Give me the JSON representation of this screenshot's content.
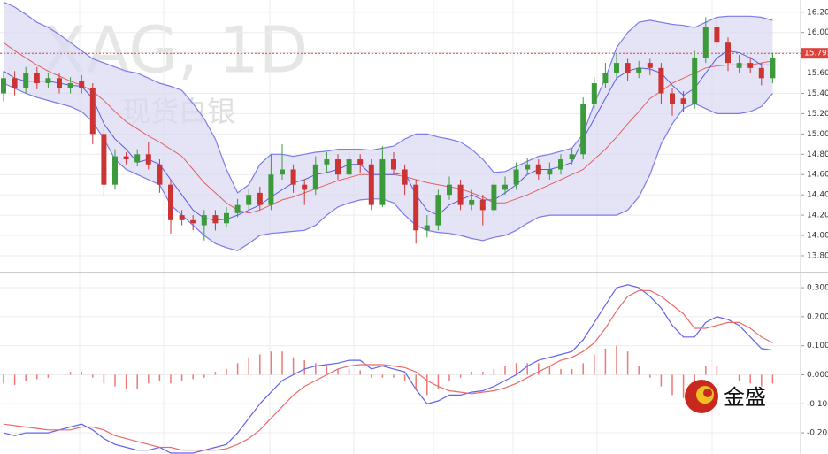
{
  "chart_data": [
    {
      "type": "candlestick",
      "title": "XAG, 1D",
      "subtitle": "现货白银",
      "open": [
        15.4,
        15.55,
        15.45,
        15.6,
        15.5,
        15.55,
        15.45,
        15.52,
        15.45,
        15.0,
        14.5,
        14.78,
        14.72,
        14.8,
        14.7,
        14.5,
        14.2,
        14.15,
        14.1,
        14.2,
        14.12,
        14.22,
        14.3,
        14.42,
        14.3,
        14.6,
        14.65,
        14.5,
        14.45,
        14.7,
        14.75,
        14.6,
        14.75,
        14.7,
        14.3,
        14.75,
        14.65,
        14.5,
        14.05,
        14.1,
        14.4,
        14.5,
        14.3,
        14.35,
        14.25,
        14.45,
        14.5,
        14.65,
        14.7,
        14.6,
        14.65,
        14.75,
        14.8,
        15.3,
        15.5,
        15.6,
        15.7,
        15.6,
        15.7,
        15.65,
        15.4,
        15.35,
        15.3,
        15.75,
        16.05,
        15.9,
        15.65,
        15.7,
        15.65,
        15.55
      ],
      "high": [
        15.62,
        15.62,
        15.66,
        15.66,
        15.6,
        15.6,
        15.56,
        15.58,
        15.5,
        15.05,
        14.85,
        14.82,
        14.85,
        14.92,
        14.75,
        14.55,
        14.25,
        14.2,
        14.25,
        14.25,
        14.28,
        14.36,
        14.46,
        14.48,
        14.8,
        14.9,
        14.7,
        14.55,
        14.78,
        14.82,
        14.8,
        14.82,
        14.8,
        14.75,
        14.88,
        14.82,
        14.7,
        14.55,
        14.2,
        14.45,
        14.58,
        14.55,
        14.45,
        14.4,
        14.56,
        14.58,
        14.72,
        14.76,
        14.75,
        14.72,
        14.8,
        14.86,
        15.36,
        15.56,
        15.7,
        15.8,
        15.74,
        15.72,
        15.74,
        15.7,
        15.45,
        15.42,
        15.82,
        16.15,
        16.12,
        15.95,
        15.78,
        15.76,
        15.7,
        15.8
      ],
      "low": [
        15.32,
        15.38,
        15.4,
        15.44,
        15.45,
        15.4,
        15.4,
        15.4,
        14.9,
        14.38,
        14.45,
        14.7,
        14.68,
        14.65,
        14.42,
        14.02,
        14.1,
        14.05,
        13.95,
        14.05,
        14.08,
        14.18,
        14.25,
        14.25,
        14.25,
        14.55,
        14.42,
        14.3,
        14.4,
        14.62,
        14.55,
        14.55,
        14.62,
        14.25,
        14.28,
        14.6,
        14.4,
        13.92,
        13.98,
        14.05,
        14.35,
        14.25,
        14.25,
        14.1,
        14.2,
        14.4,
        14.45,
        14.6,
        14.55,
        14.55,
        14.6,
        14.7,
        14.75,
        15.25,
        15.45,
        15.55,
        15.52,
        15.55,
        15.58,
        15.3,
        15.18,
        15.22,
        15.25,
        15.7,
        15.85,
        15.62,
        15.6,
        15.6,
        15.48,
        15.5
      ],
      "close": [
        15.55,
        15.45,
        15.6,
        15.5,
        15.55,
        15.45,
        15.5,
        15.45,
        15.0,
        14.5,
        14.78,
        14.75,
        14.8,
        14.7,
        14.5,
        14.15,
        14.15,
        14.12,
        14.2,
        14.12,
        14.22,
        14.3,
        14.4,
        14.3,
        14.6,
        14.65,
        14.5,
        14.45,
        14.7,
        14.75,
        14.6,
        14.75,
        14.7,
        14.3,
        14.75,
        14.65,
        14.5,
        14.05,
        14.1,
        14.4,
        14.5,
        14.3,
        14.35,
        14.25,
        14.5,
        14.5,
        14.65,
        14.7,
        14.6,
        14.65,
        14.75,
        14.8,
        15.3,
        15.5,
        15.6,
        15.7,
        15.6,
        15.65,
        15.65,
        15.4,
        15.3,
        15.3,
        15.75,
        16.05,
        15.9,
        15.7,
        15.7,
        15.65,
        15.55,
        15.75
      ],
      "up_color": "#3c9a3c",
      "down_color": "#cc3333",
      "bands": {
        "color": "#7b7bea",
        "fill": "#d8d8f2",
        "upper": [
          16.3,
          16.25,
          16.18,
          16.1,
          16.05,
          15.98,
          15.9,
          15.82,
          15.74,
          15.7,
          15.66,
          15.62,
          15.6,
          15.55,
          15.5,
          15.47,
          15.43,
          15.3,
          15.15,
          14.95,
          14.65,
          14.42,
          14.5,
          14.7,
          14.8,
          14.8,
          14.78,
          14.8,
          14.82,
          14.83,
          14.85,
          14.85,
          14.85,
          14.84,
          14.86,
          14.88,
          14.95,
          15.0,
          15.0,
          14.97,
          14.95,
          14.92,
          14.85,
          14.75,
          14.62,
          14.63,
          14.68,
          14.73,
          14.78,
          14.8,
          14.83,
          14.86,
          15.0,
          15.3,
          15.55,
          15.85,
          16.0,
          16.1,
          16.12,
          16.1,
          16.08,
          16.07,
          16.05,
          16.1,
          16.15,
          16.16,
          16.16,
          16.16,
          16.15,
          16.12
        ],
        "lower": [
          15.5,
          15.45,
          15.4,
          15.36,
          15.33,
          15.3,
          15.27,
          15.22,
          15.12,
          14.95,
          14.75,
          14.65,
          14.6,
          14.55,
          14.5,
          14.3,
          14.2,
          14.1,
          14.0,
          13.92,
          13.88,
          13.85,
          13.92,
          14.0,
          14.02,
          14.03,
          14.04,
          14.05,
          14.1,
          14.2,
          14.28,
          14.32,
          14.35,
          14.36,
          14.36,
          14.32,
          14.2,
          14.1,
          14.05,
          14.03,
          14.02,
          14.0,
          13.97,
          13.95,
          13.98,
          14.0,
          14.05,
          14.12,
          14.18,
          14.2,
          14.2,
          14.2,
          14.2,
          14.2,
          14.2,
          14.2,
          14.25,
          14.38,
          14.6,
          14.9,
          15.1,
          15.25,
          15.3,
          15.25,
          15.2,
          15.2,
          15.2,
          15.22,
          15.27,
          15.4
        ]
      },
      "lines": [
        {
          "color": "#e06060",
          "values": [
            15.9,
            15.82,
            15.75,
            15.68,
            15.62,
            15.57,
            15.52,
            15.48,
            15.42,
            15.33,
            15.22,
            15.12,
            15.05,
            14.98,
            14.92,
            14.85,
            14.78,
            14.65,
            14.52,
            14.42,
            14.32,
            14.25,
            14.22,
            14.25,
            14.3,
            14.35,
            14.38,
            14.42,
            14.46,
            14.5,
            14.54,
            14.57,
            14.6,
            14.6,
            14.6,
            14.6,
            14.58,
            14.55,
            14.52,
            14.5,
            14.48,
            14.46,
            14.42,
            14.38,
            14.32,
            14.32,
            14.36,
            14.4,
            14.45,
            14.5,
            14.55,
            14.6,
            14.65,
            14.75,
            14.85,
            14.97,
            15.1,
            15.22,
            15.35,
            15.42,
            15.5,
            15.55,
            15.6,
            15.65,
            15.67,
            15.68,
            15.68,
            15.68,
            15.7,
            15.72
          ]
        },
        {
          "color": "#5a5ae6",
          "values": [
            15.62,
            15.55,
            15.52,
            15.52,
            15.52,
            15.5,
            15.48,
            15.47,
            15.35,
            15.1,
            14.95,
            14.85,
            14.72,
            14.75,
            14.7,
            14.55,
            14.4,
            14.25,
            14.17,
            14.15,
            14.16,
            14.2,
            14.25,
            14.3,
            14.38,
            14.45,
            14.52,
            14.55,
            14.6,
            14.62,
            14.65,
            14.7,
            14.7,
            14.6,
            14.6,
            14.6,
            14.62,
            14.4,
            14.25,
            14.2,
            14.3,
            14.35,
            14.4,
            14.35,
            14.35,
            14.42,
            14.5,
            14.6,
            14.65,
            14.65,
            14.68,
            14.72,
            14.95,
            15.15,
            15.35,
            15.55,
            15.62,
            15.65,
            15.64,
            15.6,
            15.48,
            15.38,
            15.45,
            15.6,
            15.75,
            15.82,
            15.8,
            15.75,
            15.68,
            15.68
          ]
        }
      ],
      "last_price": {
        "value": 15.795,
        "label": "15.795"
      },
      "last_color": "#e0403a",
      "ylim": [
        13.634,
        16.32
      ],
      "yticks": [
        {
          "value": 13.8,
          "label": "13.80"
        },
        {
          "value": 14.0,
          "label": "14.00"
        },
        {
          "value": 14.2,
          "label": "14.20"
        },
        {
          "value": 14.4,
          "label": "14.40"
        },
        {
          "value": 14.6,
          "label": "14.60"
        },
        {
          "value": 14.8,
          "label": "14.80"
        },
        {
          "value": 15.0,
          "label": "15.00"
        },
        {
          "value": 15.2,
          "label": "15.20"
        },
        {
          "value": 15.4,
          "label": "15.40"
        },
        {
          "value": 15.6,
          "label": "15.60"
        },
        {
          "value": 15.8,
          "label": "15.80"
        },
        {
          "value": 16.0,
          "label": "16.00"
        },
        {
          "value": 16.2,
          "label": "16.20"
        }
      ],
      "grid": true
    },
    {
      "type": "macd",
      "series": [
        {
          "color": "#6262ea",
          "values": [
            -0.2,
            -0.21,
            -0.2,
            -0.2,
            -0.2,
            -0.19,
            -0.18,
            -0.17,
            -0.19,
            -0.22,
            -0.24,
            -0.25,
            -0.26,
            -0.26,
            -0.25,
            -0.27,
            -0.27,
            -0.27,
            -0.26,
            -0.25,
            -0.24,
            -0.2,
            -0.15,
            -0.1,
            -0.06,
            -0.02,
            0.0,
            0.02,
            0.03,
            0.035,
            0.04,
            0.05,
            0.05,
            0.02,
            0.03,
            0.02,
            0.01,
            -0.05,
            -0.1,
            -0.09,
            -0.07,
            -0.07,
            -0.06,
            -0.055,
            -0.04,
            -0.02,
            0.0,
            0.03,
            0.05,
            0.06,
            0.07,
            0.08,
            0.12,
            0.18,
            0.24,
            0.3,
            0.31,
            0.3,
            0.27,
            0.23,
            0.17,
            0.13,
            0.13,
            0.18,
            0.2,
            0.19,
            0.17,
            0.13,
            0.09,
            0.085
          ]
        },
        {
          "color": "#ea6a6a",
          "values": [
            -0.17,
            -0.175,
            -0.18,
            -0.185,
            -0.19,
            -0.19,
            -0.19,
            -0.18,
            -0.18,
            -0.19,
            -0.21,
            -0.22,
            -0.23,
            -0.24,
            -0.25,
            -0.25,
            -0.26,
            -0.26,
            -0.26,
            -0.26,
            -0.255,
            -0.24,
            -0.22,
            -0.19,
            -0.15,
            -0.11,
            -0.07,
            -0.04,
            -0.02,
            0.0,
            0.02,
            0.03,
            0.035,
            0.035,
            0.035,
            0.03,
            0.025,
            0.01,
            -0.02,
            -0.04,
            -0.055,
            -0.06,
            -0.065,
            -0.06,
            -0.055,
            -0.045,
            -0.03,
            -0.01,
            0.01,
            0.03,
            0.05,
            0.06,
            0.08,
            0.11,
            0.16,
            0.22,
            0.27,
            0.29,
            0.29,
            0.27,
            0.24,
            0.21,
            0.16,
            0.16,
            0.17,
            0.18,
            0.18,
            0.16,
            0.13,
            0.11
          ]
        }
      ],
      "histogram": {
        "color": "#ee7777",
        "values": [
          -0.03,
          -0.035,
          -0.02,
          -0.015,
          -0.01,
          0.0,
          0.01,
          0.01,
          -0.01,
          -0.03,
          -0.04,
          -0.05,
          -0.05,
          -0.03,
          -0.02,
          -0.03,
          -0.02,
          -0.015,
          -0.01,
          0.01,
          0.02,
          0.04,
          0.06,
          0.07,
          0.08,
          0.08,
          0.06,
          0.05,
          0.04,
          0.03,
          0.02,
          0.02,
          0.015,
          -0.01,
          -0.01,
          -0.01,
          -0.02,
          -0.05,
          -0.07,
          -0.05,
          -0.02,
          -0.01,
          0.01,
          0.01,
          0.02,
          0.03,
          0.04,
          0.04,
          0.04,
          0.03,
          0.02,
          0.02,
          0.04,
          0.07,
          0.09,
          0.1,
          0.08,
          0.03,
          -0.01,
          -0.04,
          -0.07,
          -0.08,
          -0.05,
          0.03,
          0.03,
          0.0,
          -0.02,
          -0.03,
          -0.04,
          -0.03
        ]
      },
      "ylim": [
        -0.273,
        0.352
      ],
      "yticks": [
        {
          "value": -0.2,
          "label": "-0.200"
        },
        {
          "value": -0.1,
          "label": "-0.100"
        },
        {
          "value": 0.0,
          "label": "0.000"
        },
        {
          "value": 0.1,
          "label": "0.100"
        },
        {
          "value": 0.2,
          "label": "0.200"
        },
        {
          "value": 0.3,
          "label": "0.300"
        }
      ],
      "grid": true
    }
  ],
  "logo": {
    "text": "金盛"
  }
}
